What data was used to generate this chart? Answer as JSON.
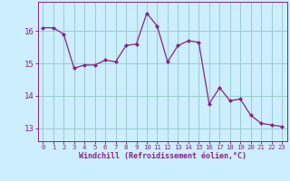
{
  "x": [
    0,
    1,
    2,
    3,
    4,
    5,
    6,
    7,
    8,
    9,
    10,
    11,
    12,
    13,
    14,
    15,
    16,
    17,
    18,
    19,
    20,
    21,
    22,
    23
  ],
  "y": [
    16.1,
    16.1,
    15.9,
    14.85,
    14.95,
    14.95,
    15.1,
    15.05,
    15.55,
    15.6,
    16.55,
    16.15,
    15.05,
    15.55,
    15.7,
    15.65,
    13.75,
    14.25,
    13.85,
    13.9,
    13.4,
    13.15,
    13.1,
    13.05
  ],
  "line_color": "#882288",
  "marker": "D",
  "marker_size": 2.0,
  "background_color": "#cceeff",
  "grid_color": "#99cccc",
  "tick_color": "#882288",
  "label_color": "#882288",
  "xlabel": "Windchill (Refroidissement éolien,°C)",
  "ylim": [
    12.6,
    16.9
  ],
  "yticks": [
    13,
    14,
    15,
    16
  ],
  "xticks": [
    0,
    1,
    2,
    3,
    4,
    5,
    6,
    7,
    8,
    9,
    10,
    11,
    12,
    13,
    14,
    15,
    16,
    17,
    18,
    19,
    20,
    21,
    22,
    23
  ]
}
